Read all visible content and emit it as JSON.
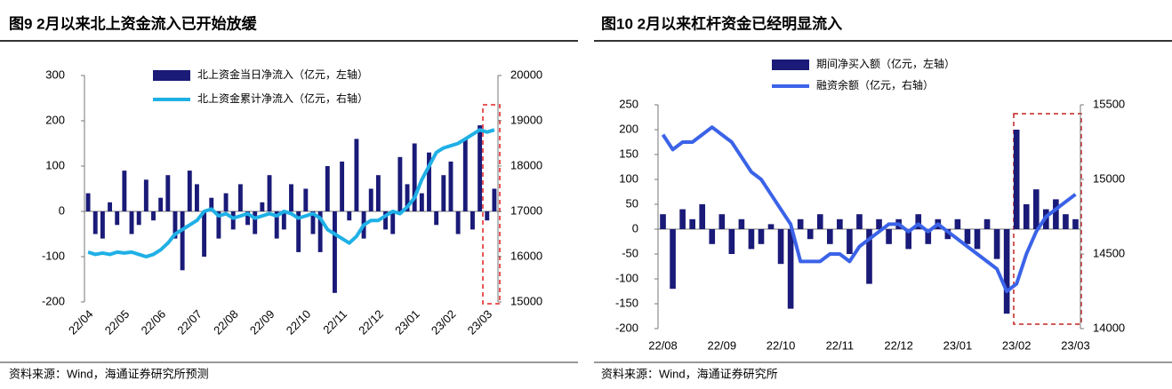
{
  "chart_data": [
    {
      "type": "combo",
      "title": "图9 2月以来北上资金流入已开始放缓",
      "source": "资料来源：Wind，海通证券研究所预测",
      "categories": [
        "22/04",
        null,
        null,
        null,
        null,
        "22/05",
        null,
        null,
        null,
        null,
        "22/06",
        null,
        null,
        null,
        null,
        "22/07",
        null,
        null,
        null,
        null,
        "22/08",
        null,
        null,
        null,
        null,
        "22/09",
        null,
        null,
        null,
        null,
        "22/10",
        null,
        null,
        null,
        null,
        "22/11",
        null,
        null,
        null,
        null,
        "22/12",
        null,
        null,
        null,
        null,
        "23/01",
        null,
        null,
        null,
        null,
        "23/02",
        null,
        null,
        null,
        null,
        "23/03",
        null
      ],
      "series": [
        {
          "name": "北上资金当日净流入（亿元，左轴）",
          "type": "bar",
          "color": "#1a1a78",
          "axis": "y",
          "values": [
            40,
            -50,
            -60,
            20,
            -30,
            90,
            -50,
            -30,
            70,
            -20,
            30,
            80,
            -60,
            -130,
            90,
            60,
            -100,
            30,
            -60,
            40,
            -40,
            60,
            -30,
            -50,
            20,
            80,
            -60,
            -40,
            60,
            -90,
            50,
            -50,
            -90,
            100,
            -180,
            110,
            -20,
            160,
            -60,
            50,
            80,
            -40,
            -50,
            120,
            60,
            150,
            40,
            130,
            -30,
            80,
            110,
            -50,
            160,
            -40,
            190,
            -20,
            50
          ]
        },
        {
          "name": "北上资金累计净流入（亿元，右轴）",
          "type": "line",
          "color": "#1fb0e6",
          "axis": "y2",
          "values": [
            16100,
            16050,
            16080,
            16050,
            16100,
            16080,
            16100,
            16050,
            16000,
            16050,
            16150,
            16300,
            16500,
            16600,
            16700,
            16800,
            17000,
            17050,
            16900,
            16950,
            16850,
            16900,
            16950,
            16850,
            16900,
            16950,
            16900,
            17000,
            16950,
            16850,
            16900,
            16950,
            16850,
            16600,
            16500,
            16400,
            16300,
            16450,
            16700,
            16800,
            16800,
            16900,
            17000,
            16950,
            17100,
            17300,
            17700,
            18000,
            18300,
            18400,
            18450,
            18500,
            18600,
            18700,
            18800,
            18750,
            18800
          ]
        }
      ],
      "ylim": [
        -200,
        300
      ],
      "yticks": [
        -200,
        -100,
        0,
        100,
        200,
        300
      ],
      "y2lim": [
        15000,
        20000
      ],
      "y2ticks": [
        15000,
        16000,
        17000,
        18000,
        19000,
        20000
      ]
    },
    {
      "type": "combo",
      "title": "图10 2月以来杠杆资金已经明显流入",
      "source": "资料来源：Wind，海通证券研究所",
      "categories": [
        "22/08",
        null,
        null,
        null,
        null,
        null,
        "22/09",
        null,
        null,
        null,
        null,
        null,
        "22/10",
        null,
        null,
        null,
        null,
        null,
        "22/11",
        null,
        null,
        null,
        null,
        null,
        "22/12",
        null,
        null,
        null,
        null,
        null,
        "23/01",
        null,
        null,
        null,
        null,
        null,
        "23/02",
        null,
        null,
        null,
        null,
        null,
        "23/03"
      ],
      "series": [
        {
          "name": "期间净买入额（亿元，左轴）",
          "type": "bar",
          "color": "#1a1a78",
          "axis": "y",
          "values": [
            30,
            -120,
            40,
            20,
            50,
            -30,
            30,
            -50,
            20,
            -40,
            -30,
            10,
            -70,
            -160,
            20,
            -20,
            30,
            -30,
            20,
            -50,
            30,
            -110,
            20,
            -30,
            20,
            -40,
            30,
            -30,
            20,
            -20,
            20,
            -30,
            -40,
            20,
            -60,
            -170,
            200,
            50,
            80,
            40,
            60,
            30,
            20
          ]
        },
        {
          "name": "融资余额（亿元，右轴）",
          "type": "line",
          "color": "#3b63e8",
          "axis": "y2",
          "values": [
            15300,
            15200,
            15250,
            15250,
            15300,
            15350,
            15300,
            15250,
            15150,
            15050,
            15000,
            14900,
            14800,
            14700,
            14450,
            14450,
            14450,
            14500,
            14500,
            14450,
            14550,
            14600,
            14650,
            14700,
            14700,
            14650,
            14700,
            14650,
            14700,
            14650,
            14600,
            14550,
            14500,
            14450,
            14400,
            14250,
            14300,
            14500,
            14650,
            14750,
            14800,
            14850,
            14900
          ]
        }
      ],
      "ylim": [
        -200,
        250
      ],
      "yticks": [
        -200,
        -150,
        -100,
        -50,
        0,
        50,
        100,
        150,
        200,
        250
      ],
      "y2lim": [
        14000,
        15500
      ],
      "y2ticks": [
        14000,
        14500,
        15000,
        15500
      ]
    }
  ]
}
